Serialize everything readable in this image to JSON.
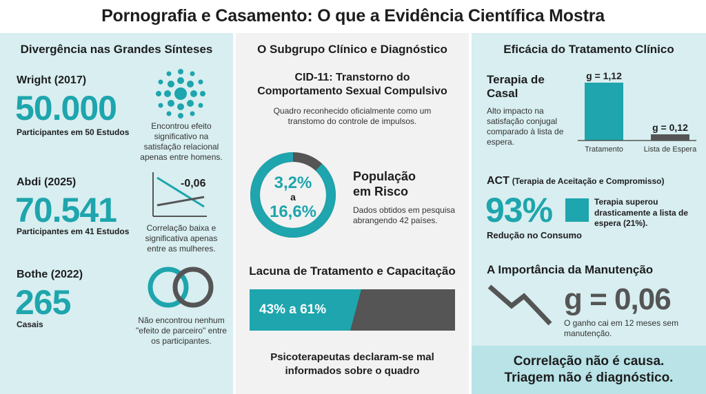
{
  "title": "Pornografia e Casamento: O que a Evidência Científica Mostra",
  "left": {
    "heading": "Divergência nas Grandes Sínteses",
    "items": [
      {
        "author": "Wright (2017)",
        "value": "50.000",
        "caption": "Participantes em 50 Estudos",
        "note": "Encontrou efeito significativo na satisfação relacional apenas entre homens.",
        "icon": "dot-cluster-icon"
      },
      {
        "author": "Abdi (2025)",
        "value": "70.541",
        "caption": "Participantes em 41 Estudos",
        "note": "Correlação baixa e significativa apenas entre as mulheres.",
        "chart_label": "-0,06",
        "icon": "line-chart-icon"
      },
      {
        "author": "Bothe (2022)",
        "value": "265",
        "caption": "Casais",
        "note": "Não encontrou nenhum \"efeito de parceiro\" entre os participantes.",
        "icon": "rings-icon"
      }
    ]
  },
  "mid": {
    "heading": "O Subgrupo Clínico e Diagnóstico",
    "cid_title_1": "CID-11: Transtorno do",
    "cid_title_2": "Comportamento Sexual Compulsivo",
    "cid_desc": "Quadro reconhecido oficialmente como um transtomo do controle de impulsos.",
    "donut": {
      "low": "3,2%",
      "mid": "a",
      "high": "16,6%",
      "fraction": 0.88
    },
    "risk_title_1": "População",
    "risk_title_2": "em Risco",
    "risk_desc": "Dados obtidos em pesquisa abrangendo 42 países.",
    "gap_heading": "Lacuna de Tratamento e Capacitação",
    "gap_value": "43% a 61%",
    "gap_desc_1": "Psicoterapeutas declaram-se mal",
    "gap_desc_2": "informados sobre o quadro"
  },
  "right": {
    "heading": "Eficácia do Tratamento Clínico",
    "couple_title_1": "Terapia de",
    "couple_title_2": "Casal",
    "couple_desc": "Alto impacto na satisfação conjugal comparado à lista de espera.",
    "chart_data": {
      "type": "bar",
      "categories": [
        "Tratamento",
        "Lista de Espera"
      ],
      "values": [
        1.12,
        0.12
      ],
      "labels": [
        "g = 1,12",
        "g = 0,12"
      ],
      "colors": [
        "#1ea5ad",
        "#555555"
      ]
    },
    "act_title": "ACT",
    "act_subtitle": "(Terapia de Aceitação e Compromisso)",
    "act_value": "93%",
    "act_caption": "Redução no Consumo",
    "act_note": "Terapia superou drasticamente a lista de espera (21%).",
    "maint_heading": "A Importância da Manutenção",
    "maint_value": "g = 0,06",
    "maint_desc": "O ganho cai em 12 meses sem manutenção.",
    "footer_1": "Correlação não é causa.",
    "footer_2": "Triagem não é diagnóstico."
  },
  "colors": {
    "accent": "#1ea5ad",
    "dark": "#555555",
    "panel": "#d8eef0"
  }
}
